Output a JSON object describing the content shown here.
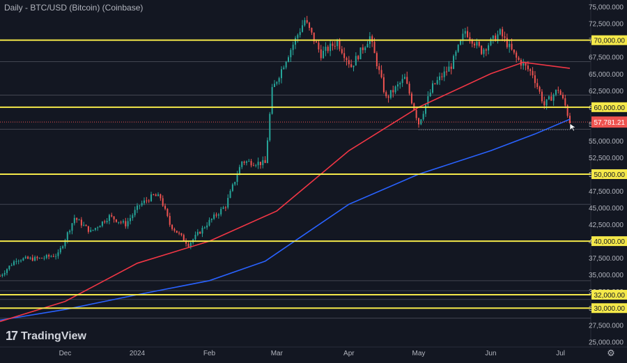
{
  "chart_data": {
    "type": "candlestick",
    "title": "Daily - BTC/USD (Bitcoin) (Coinbase)",
    "y_ticks": [
      75000,
      72500,
      70000,
      67500,
      65000,
      62500,
      60000,
      57500,
      55000,
      52500,
      50000,
      47500,
      45000,
      42500,
      40000,
      37500,
      35000,
      32500,
      30000,
      27500,
      25000
    ],
    "x_ticks": [
      {
        "label": "Dec",
        "date": "2023-12-01"
      },
      {
        "label": "2024",
        "date": "2024-01-01"
      },
      {
        "label": "Feb",
        "date": "2024-02-01"
      },
      {
        "label": "Mar",
        "date": "2024-03-01"
      },
      {
        "label": "Apr",
        "date": "2024-04-01"
      },
      {
        "label": "May",
        "date": "2024-05-01"
      },
      {
        "label": "Jun",
        "date": "2024-06-01"
      },
      {
        "label": "Jul",
        "date": "2024-07-01"
      }
    ],
    "date_range": [
      "2023-11-03",
      "2024-07-05"
    ],
    "y_range": [
      24200,
      76000
    ],
    "levels": [
      {
        "label": "70,000.00",
        "value": 70000
      },
      {
        "label": "60,000.00",
        "value": 60000
      },
      {
        "label": "50,000.00",
        "value": 50000
      },
      {
        "label": "40,000.00",
        "value": 40000
      },
      {
        "label": "32,000.00",
        "value": 32000
      },
      {
        "label": "30,000.00",
        "value": 30000
      }
    ],
    "minor_lines": [
      66800,
      61800,
      56700,
      45500,
      34100,
      32600,
      31300,
      28500
    ],
    "last_price": {
      "label": "57,781.21",
      "value": 57781.21
    },
    "price_path": [
      [
        "2023-11-03",
        34800
      ],
      [
        "2023-11-10",
        37300
      ],
      [
        "2023-11-20",
        37400
      ],
      [
        "2023-11-28",
        38000
      ],
      [
        "2023-12-05",
        43500
      ],
      [
        "2023-12-12",
        41400
      ],
      [
        "2023-12-20",
        43700
      ],
      [
        "2023-12-27",
        42500
      ],
      [
        "2024-01-02",
        45400
      ],
      [
        "2024-01-08",
        46800
      ],
      [
        "2024-01-11",
        46500
      ],
      [
        "2024-01-15",
        42500
      ],
      [
        "2024-01-23",
        39500
      ],
      [
        "2024-01-31",
        42600
      ],
      [
        "2024-02-08",
        45300
      ],
      [
        "2024-02-15",
        51900
      ],
      [
        "2024-02-25",
        51600
      ],
      [
        "2024-02-28",
        62500
      ],
      [
        "2024-03-05",
        67200
      ],
      [
        "2024-03-13",
        73000
      ],
      [
        "2024-03-20",
        67900
      ],
      [
        "2024-03-27",
        69800
      ],
      [
        "2024-04-02",
        66100
      ],
      [
        "2024-04-10",
        70500
      ],
      [
        "2024-04-17",
        61300
      ],
      [
        "2024-04-25",
        64300
      ],
      [
        "2024-05-01",
        57600
      ],
      [
        "2024-05-07",
        63100
      ],
      [
        "2024-05-15",
        66200
      ],
      [
        "2024-05-21",
        71400
      ],
      [
        "2024-05-28",
        68400
      ],
      [
        "2024-06-05",
        71100
      ],
      [
        "2024-06-12",
        67300
      ],
      [
        "2024-06-19",
        65000
      ],
      [
        "2024-06-24",
        60300
      ],
      [
        "2024-06-30",
        62700
      ],
      [
        "2024-07-03",
        60200
      ],
      [
        "2024-07-05",
        57781
      ]
    ],
    "ma_200": [
      [
        "2023-11-03",
        28200
      ],
      [
        "2023-12-01",
        29800
      ],
      [
        "2024-01-01",
        32000
      ],
      [
        "2024-02-01",
        34100
      ],
      [
        "2024-02-25",
        37000
      ],
      [
        "2024-03-15",
        41500
      ],
      [
        "2024-04-01",
        45500
      ],
      [
        "2024-05-01",
        50000
      ],
      [
        "2024-06-01",
        53500
      ],
      [
        "2024-06-20",
        56000
      ],
      [
        "2024-07-05",
        58200
      ]
    ],
    "ma_50": [
      [
        "2023-11-03",
        28000
      ],
      [
        "2023-12-01",
        31000
      ],
      [
        "2024-01-01",
        36700
      ],
      [
        "2024-02-01",
        40000
      ],
      [
        "2024-03-01",
        44500
      ],
      [
        "2024-04-01",
        53500
      ],
      [
        "2024-05-01",
        60000
      ],
      [
        "2024-06-01",
        65000
      ],
      [
        "2024-06-15",
        66700
      ],
      [
        "2024-07-05",
        65800
      ]
    ],
    "colors": {
      "up": "#26a69a",
      "down": "#ef5350",
      "level": "#f5e94a",
      "ma_50": "#f23645",
      "ma_200": "#2962ff"
    }
  },
  "branding": {
    "logo_text": "TradingView",
    "logo_mark": "17"
  },
  "icons": {
    "settings": "gear-icon",
    "cursor": "cursor-arrow-icon"
  }
}
